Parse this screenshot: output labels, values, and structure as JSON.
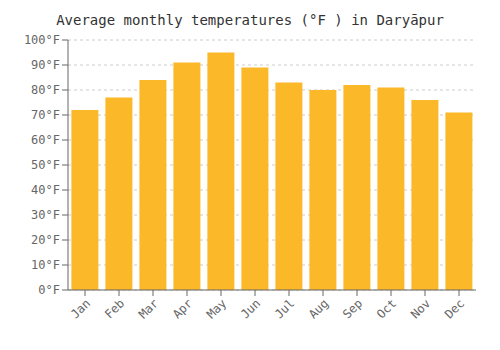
{
  "chart_data": {
    "type": "bar",
    "title": "Average monthly temperatures (°F ) in Daryāpur",
    "categories": [
      "Jan",
      "Feb",
      "Mar",
      "Apr",
      "May",
      "Jun",
      "Jul",
      "Aug",
      "Sep",
      "Oct",
      "Nov",
      "Dec"
    ],
    "values": [
      72,
      77,
      84,
      91,
      95,
      89,
      83,
      80,
      82,
      81,
      76,
      71
    ],
    "color": "#FBB829",
    "ylim": [
      0,
      100
    ],
    "yticks": [
      {
        "value": 0,
        "label": "0°F"
      },
      {
        "value": 10,
        "label": "10°F"
      },
      {
        "value": 20,
        "label": "20°F"
      },
      {
        "value": 30,
        "label": "30°F"
      },
      {
        "value": 40,
        "label": "40°F"
      },
      {
        "value": 50,
        "label": "50°F"
      },
      {
        "value": 60,
        "label": "60°F"
      },
      {
        "value": 70,
        "label": "70°F"
      },
      {
        "value": 80,
        "label": "80°F"
      },
      {
        "value": 90,
        "label": "90°F"
      },
      {
        "value": 100,
        "label": "100°F"
      }
    ],
    "grid": true
  }
}
